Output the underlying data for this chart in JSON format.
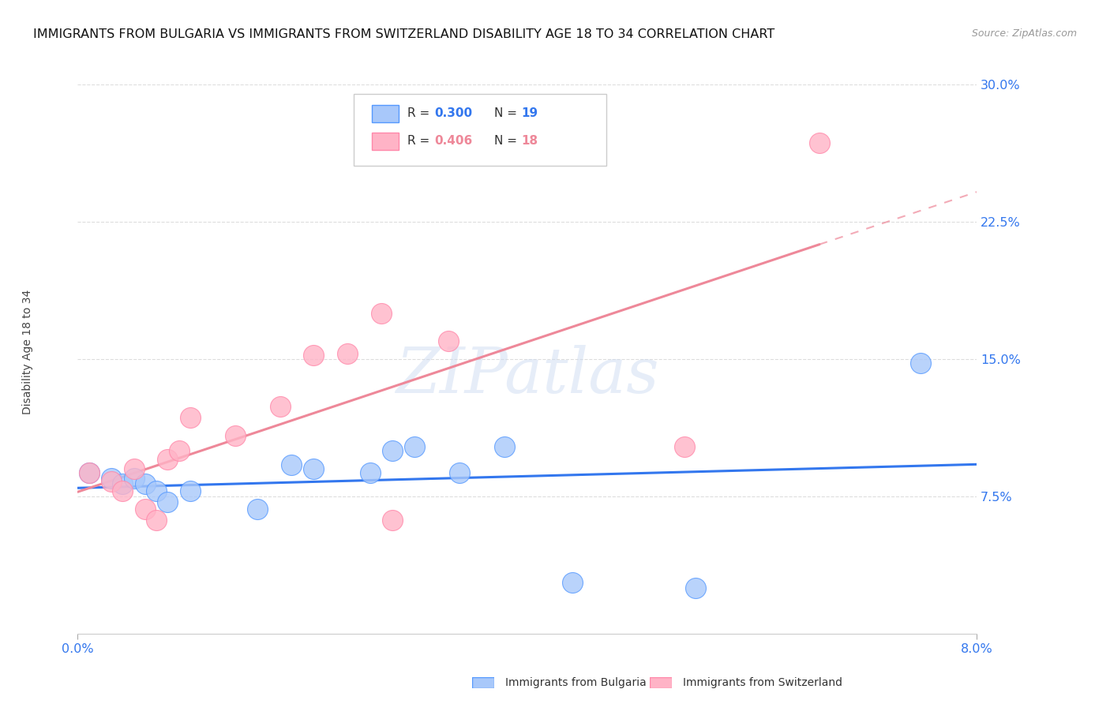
{
  "title": "IMMIGRANTS FROM BULGARIA VS IMMIGRANTS FROM SWITZERLAND DISABILITY AGE 18 TO 34 CORRELATION CHART",
  "source": "Source: ZipAtlas.com",
  "ylabel": "Disability Age 18 to 34",
  "xlim": [
    0.0,
    0.08
  ],
  "ylim": [
    0.0,
    0.3
  ],
  "xticks": [
    0.0,
    0.08
  ],
  "xtick_labels": [
    "0.0%",
    "8.0%"
  ],
  "yticks": [
    0.075,
    0.15,
    0.225,
    0.3
  ],
  "ytick_labels": [
    "7.5%",
    "15.0%",
    "22.5%",
    "30.0%"
  ],
  "watermark": "ZIPatlas",
  "legend_r1": "0.300",
  "legend_n1": "19",
  "legend_r2": "0.406",
  "legend_n2": "18",
  "color_bulgaria": "#a8c8fa",
  "color_switzerland": "#ffb3c6",
  "trendline_bulgaria": "#3377ee",
  "trendline_switzerland": "#ee8899",
  "scatter_edge_bulgaria": "#5599ff",
  "scatter_edge_switzerland": "#ff88aa",
  "bulgaria_x": [
    0.001,
    0.003,
    0.004,
    0.005,
    0.006,
    0.007,
    0.008,
    0.01,
    0.016,
    0.019,
    0.021,
    0.026,
    0.028,
    0.03,
    0.034,
    0.038,
    0.044,
    0.055,
    0.075
  ],
  "bulgaria_y": [
    0.088,
    0.085,
    0.082,
    0.085,
    0.082,
    0.078,
    0.072,
    0.078,
    0.068,
    0.092,
    0.09,
    0.088,
    0.1,
    0.102,
    0.088,
    0.102,
    0.028,
    0.025,
    0.148
  ],
  "switzerland_x": [
    0.001,
    0.003,
    0.004,
    0.005,
    0.006,
    0.007,
    0.008,
    0.009,
    0.01,
    0.014,
    0.018,
    0.021,
    0.024,
    0.027,
    0.028,
    0.033,
    0.054,
    0.066
  ],
  "switzerland_y": [
    0.088,
    0.083,
    0.078,
    0.09,
    0.068,
    0.062,
    0.095,
    0.1,
    0.118,
    0.108,
    0.124,
    0.152,
    0.153,
    0.175,
    0.062,
    0.16,
    0.102,
    0.268
  ],
  "bg_color": "#ffffff",
  "grid_color": "#dddddd",
  "tick_color": "#3377ee",
  "title_color": "#111111",
  "source_color": "#999999",
  "title_fontsize": 11.5,
  "axis_label_fontsize": 10,
  "tick_fontsize": 11.5,
  "legend_fontsize": 11
}
